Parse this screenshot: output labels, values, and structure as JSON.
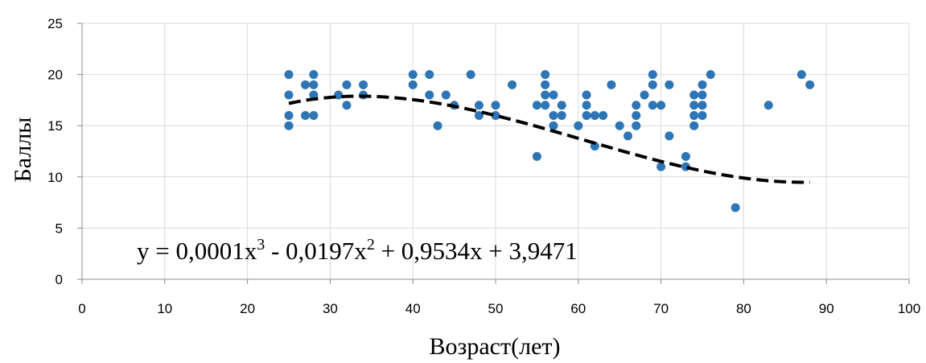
{
  "chart_data": {
    "type": "scatter",
    "xlabel": "Возраст(лет)",
    "ylabel": "Баллы",
    "xlim": [
      0,
      100
    ],
    "ylim": [
      0,
      25
    ],
    "x_ticks": [
      0,
      10,
      20,
      30,
      40,
      50,
      60,
      70,
      80,
      90,
      100
    ],
    "y_ticks": [
      0,
      5,
      10,
      15,
      20,
      25
    ],
    "grid": true,
    "marker_color": "#2E75B6",
    "trendline": {
      "type": "polynomial",
      "order": 3,
      "style": "dashed",
      "color": "#000000",
      "x_range": [
        25,
        88
      ],
      "coefficients": [
        0.0001,
        -0.0197,
        0.9534,
        3.9471
      ],
      "equation": {
        "y": "y = 0,0001x",
        "e3": "3",
        "mid": " - 0,0197x",
        "e2": "2",
        "tail": " + 0,9534x + 3,9471"
      }
    },
    "points": [
      [
        25,
        20
      ],
      [
        25,
        18
      ],
      [
        25,
        16
      ],
      [
        25,
        15
      ],
      [
        27,
        19
      ],
      [
        27,
        16
      ],
      [
        28,
        20
      ],
      [
        28,
        19
      ],
      [
        28,
        18
      ],
      [
        28,
        16
      ],
      [
        31,
        18
      ],
      [
        32,
        19
      ],
      [
        32,
        17
      ],
      [
        34,
        19
      ],
      [
        34,
        18
      ],
      [
        40,
        20
      ],
      [
        40,
        19
      ],
      [
        42,
        20
      ],
      [
        42,
        18
      ],
      [
        43,
        15
      ],
      [
        44,
        18
      ],
      [
        45,
        17
      ],
      [
        47,
        20
      ],
      [
        48,
        17
      ],
      [
        48,
        16
      ],
      [
        50,
        17
      ],
      [
        50,
        16
      ],
      [
        52,
        19
      ],
      [
        55,
        17
      ],
      [
        55,
        12
      ],
      [
        56,
        20
      ],
      [
        56,
        19
      ],
      [
        56,
        18
      ],
      [
        56,
        17
      ],
      [
        57,
        18
      ],
      [
        57,
        16
      ],
      [
        57,
        15
      ],
      [
        58,
        17
      ],
      [
        58,
        16
      ],
      [
        60,
        15
      ],
      [
        61,
        18
      ],
      [
        61,
        17
      ],
      [
        61,
        16
      ],
      [
        62,
        16
      ],
      [
        62,
        13
      ],
      [
        63,
        16
      ],
      [
        64,
        19
      ],
      [
        65,
        15
      ],
      [
        66,
        14
      ],
      [
        67,
        17
      ],
      [
        67,
        16
      ],
      [
        67,
        15
      ],
      [
        68,
        18
      ],
      [
        69,
        20
      ],
      [
        69,
        19
      ],
      [
        69,
        17
      ],
      [
        70,
        17
      ],
      [
        70,
        11
      ],
      [
        71,
        19
      ],
      [
        71,
        14
      ],
      [
        73,
        12
      ],
      [
        73,
        11
      ],
      [
        74,
        18
      ],
      [
        74,
        17
      ],
      [
        74,
        16
      ],
      [
        74,
        15
      ],
      [
        75,
        19
      ],
      [
        75,
        18
      ],
      [
        75,
        17
      ],
      [
        75,
        16
      ],
      [
        76,
        20
      ],
      [
        79,
        7
      ],
      [
        83,
        17
      ],
      [
        87,
        20
      ],
      [
        88,
        19
      ]
    ]
  }
}
